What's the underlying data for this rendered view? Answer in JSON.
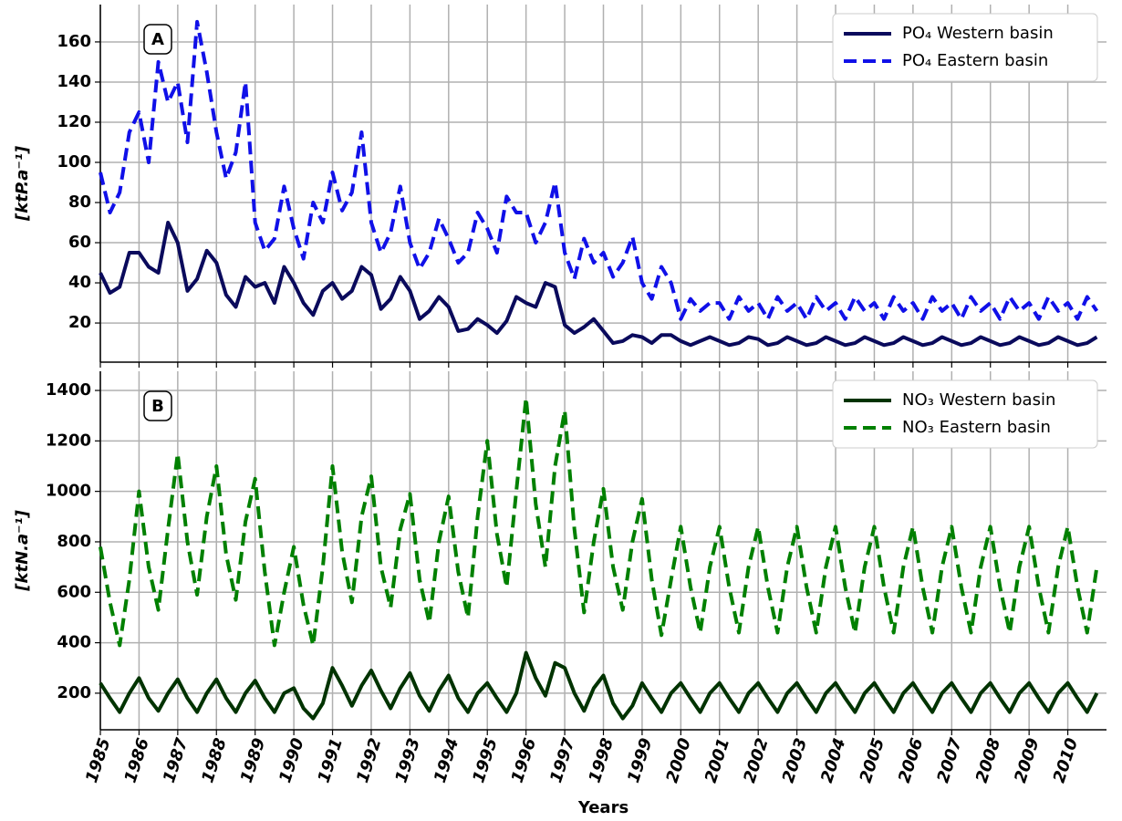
{
  "chart_data": [
    {
      "type": "line",
      "panel_label": "A",
      "ylabel": "[ktP.a⁻¹]",
      "x": [
        1985,
        1985.25,
        1985.5,
        1985.75,
        1986,
        1986.25,
        1986.5,
        1986.75,
        1987,
        1987.25,
        1987.5,
        1987.75,
        1988,
        1988.25,
        1988.5,
        1988.75,
        1989,
        1989.25,
        1989.5,
        1989.75,
        1990,
        1990.25,
        1990.5,
        1990.75,
        1991,
        1991.25,
        1991.5,
        1991.75,
        1992,
        1992.25,
        1992.5,
        1992.75,
        1993,
        1993.25,
        1993.5,
        1993.75,
        1994,
        1994.25,
        1994.5,
        1994.75,
        1995,
        1995.25,
        1995.5,
        1995.75,
        1996,
        1996.25,
        1996.5,
        1996.75,
        1997,
        1997.25,
        1997.5,
        1997.75,
        1998,
        1998.25,
        1998.5,
        1998.75,
        1999,
        1999.25,
        1999.5,
        1999.75,
        2000,
        2000.25,
        2000.5,
        2000.75,
        2001,
        2001.25,
        2001.5,
        2001.75,
        2002,
        2002.25,
        2002.5,
        2002.75,
        2003,
        2003.25,
        2003.5,
        2003.75,
        2004,
        2004.25,
        2004.5,
        2004.75,
        2005,
        2005.25,
        2005.5,
        2005.75,
        2006,
        2006.25,
        2006.5,
        2006.75,
        2007,
        2007.25,
        2007.5,
        2007.75,
        2008,
        2008.25,
        2008.5,
        2008.75,
        2009,
        2009.25,
        2009.5,
        2009.75,
        2010,
        2010.25,
        2010.5,
        2010.75
      ],
      "series": [
        {
          "name": "PO₄ Western basin",
          "color": "#0a0a5c",
          "linestyle": "solid",
          "values": [
            45,
            35,
            38,
            55,
            55,
            48,
            45,
            70,
            60,
            36,
            42,
            56,
            50,
            34,
            28,
            43,
            38,
            40,
            30,
            48,
            40,
            30,
            24,
            36,
            40,
            32,
            36,
            48,
            44,
            27,
            32,
            43,
            36,
            22,
            26,
            33,
            28,
            16,
            17,
            22,
            19,
            15,
            21,
            33,
            30,
            28,
            40,
            38,
            19,
            15,
            18,
            22,
            16,
            10,
            11,
            14,
            13,
            10,
            14,
            14,
            11,
            9,
            11,
            13,
            11,
            9,
            10,
            13,
            12,
            9,
            10,
            13,
            11,
            9,
            10,
            13,
            11,
            9,
            10,
            13,
            11,
            9,
            10,
            13,
            11,
            9,
            10,
            13,
            11,
            9,
            10,
            13,
            11,
            9,
            10,
            13,
            11,
            9,
            10,
            13,
            11,
            9,
            10,
            13
          ]
        },
        {
          "name": "PO₄ Eastern basin",
          "color": "#1010e8",
          "linestyle": "dashed",
          "values": [
            95,
            75,
            85,
            115,
            125,
            100,
            150,
            130,
            140,
            110,
            170,
            145,
            115,
            92,
            105,
            140,
            70,
            56,
            62,
            88,
            67,
            52,
            80,
            70,
            95,
            76,
            85,
            115,
            70,
            55,
            65,
            88,
            60,
            47,
            55,
            72,
            62,
            50,
            55,
            75,
            67,
            55,
            83,
            75,
            75,
            60,
            70,
            90,
            55,
            42,
            62,
            50,
            55,
            43,
            50,
            63,
            40,
            32,
            48,
            40,
            22,
            32,
            26,
            30,
            30,
            22,
            33,
            26,
            30,
            22,
            33,
            26,
            30,
            22,
            33,
            26,
            30,
            22,
            33,
            26,
            30,
            22,
            33,
            26,
            30,
            22,
            33,
            26,
            30,
            22,
            33,
            26,
            30,
            22,
            33,
            26,
            30,
            22,
            33,
            26,
            30,
            22,
            33,
            26
          ]
        }
      ],
      "xlim": [
        1985,
        2011
      ],
      "xticks": [
        1985,
        1986,
        1987,
        1988,
        1989,
        1990,
        1991,
        1992,
        1993,
        1994,
        1995,
        1996,
        1997,
        1998,
        1999,
        2000,
        2001,
        2002,
        2003,
        2004,
        2005,
        2006,
        2007,
        2008,
        2009,
        2010
      ],
      "ylim": [
        0.5,
        178.6
      ],
      "yticks": [
        20,
        40,
        60,
        80,
        100,
        120,
        140,
        160
      ],
      "grid": true,
      "legend": "upper right"
    },
    {
      "type": "line",
      "panel_label": "B",
      "ylabel": "[ktN.a⁻¹]",
      "xlabel": "Years",
      "x": [
        1985,
        1985.25,
        1985.5,
        1985.75,
        1986,
        1986.25,
        1986.5,
        1986.75,
        1987,
        1987.25,
        1987.5,
        1987.75,
        1988,
        1988.25,
        1988.5,
        1988.75,
        1989,
        1989.25,
        1989.5,
        1989.75,
        1990,
        1990.25,
        1990.5,
        1990.75,
        1991,
        1991.25,
        1991.5,
        1991.75,
        1992,
        1992.25,
        1992.5,
        1992.75,
        1993,
        1993.25,
        1993.5,
        1993.75,
        1994,
        1994.25,
        1994.5,
        1994.75,
        1995,
        1995.25,
        1995.5,
        1995.75,
        1996,
        1996.25,
        1996.5,
        1996.75,
        1997,
        1997.25,
        1997.5,
        1997.75,
        1998,
        1998.25,
        1998.5,
        1998.75,
        1999,
        1999.25,
        1999.5,
        1999.75,
        2000,
        2000.25,
        2000.5,
        2000.75,
        2001,
        2001.25,
        2001.5,
        2001.75,
        2002,
        2002.25,
        2002.5,
        2002.75,
        2003,
        2003.25,
        2003.5,
        2003.75,
        2004,
        2004.25,
        2004.5,
        2004.75,
        2005,
        2005.25,
        2005.5,
        2005.75,
        2006,
        2006.25,
        2006.5,
        2006.75,
        2007,
        2007.25,
        2007.5,
        2007.75,
        2008,
        2008.25,
        2008.5,
        2008.75,
        2009,
        2009.25,
        2009.5,
        2009.75,
        2010,
        2010.25,
        2010.5,
        2010.75
      ],
      "series": [
        {
          "name": "NO₃ Western basin",
          "color": "#003300",
          "linestyle": "solid",
          "values": [
            240,
            180,
            125,
            200,
            260,
            180,
            130,
            200,
            255,
            180,
            125,
            200,
            255,
            180,
            125,
            200,
            250,
            180,
            125,
            200,
            220,
            140,
            100,
            160,
            300,
            230,
            150,
            230,
            290,
            210,
            140,
            220,
            280,
            190,
            130,
            210,
            270,
            180,
            125,
            200,
            240,
            180,
            125,
            200,
            360,
            260,
            190,
            320,
            300,
            200,
            130,
            220,
            270,
            160,
            100,
            150,
            240,
            180,
            125,
            200,
            240,
            180,
            125,
            200,
            240,
            180,
            125,
            200,
            240,
            180,
            125,
            200,
            240,
            180,
            125,
            200,
            240,
            180,
            125,
            200,
            240,
            180,
            125,
            200,
            240,
            180,
            125,
            200,
            240,
            180,
            125,
            200,
            240,
            180,
            125,
            200,
            240,
            180,
            125,
            200,
            240,
            180,
            125,
            200
          ]
        },
        {
          "name": "NO₃ Eastern basin",
          "color": "#008000",
          "linestyle": "dashed",
          "values": [
            780,
            560,
            390,
            650,
            1000,
            700,
            530,
            850,
            1150,
            800,
            590,
            900,
            1100,
            750,
            570,
            880,
            1050,
            680,
            390,
            600,
            780,
            550,
            390,
            700,
            1100,
            760,
            560,
            900,
            1060,
            700,
            540,
            850,
            990,
            650,
            480,
            800,
            980,
            680,
            500,
            900,
            1200,
            830,
            620,
            1000,
            1370,
            950,
            700,
            1100,
            1320,
            850,
            520,
            800,
            1010,
            700,
            530,
            800,
            970,
            650,
            430,
            650,
            860,
            620,
            440,
            700,
            860,
            620,
            440,
            700,
            860,
            620,
            440,
            700,
            860,
            620,
            440,
            700,
            860,
            620,
            440,
            700,
            860,
            620,
            440,
            700,
            860,
            620,
            440,
            700,
            860,
            620,
            440,
            700,
            860,
            620,
            440,
            700,
            860,
            620,
            440,
            700,
            860,
            620,
            440,
            700
          ]
        }
      ],
      "xlim": [
        1985,
        2011
      ],
      "xticks": [
        1985,
        1986,
        1987,
        1988,
        1989,
        1990,
        1991,
        1992,
        1993,
        1994,
        1995,
        1996,
        1997,
        1998,
        1999,
        2000,
        2001,
        2002,
        2003,
        2004,
        2005,
        2006,
        2007,
        2008,
        2009,
        2010
      ],
      "ylim": [
        55,
        1476
      ],
      "yticks": [
        200,
        400,
        600,
        800,
        1000,
        1200,
        1400
      ],
      "grid": true,
      "legend": "upper right"
    }
  ]
}
